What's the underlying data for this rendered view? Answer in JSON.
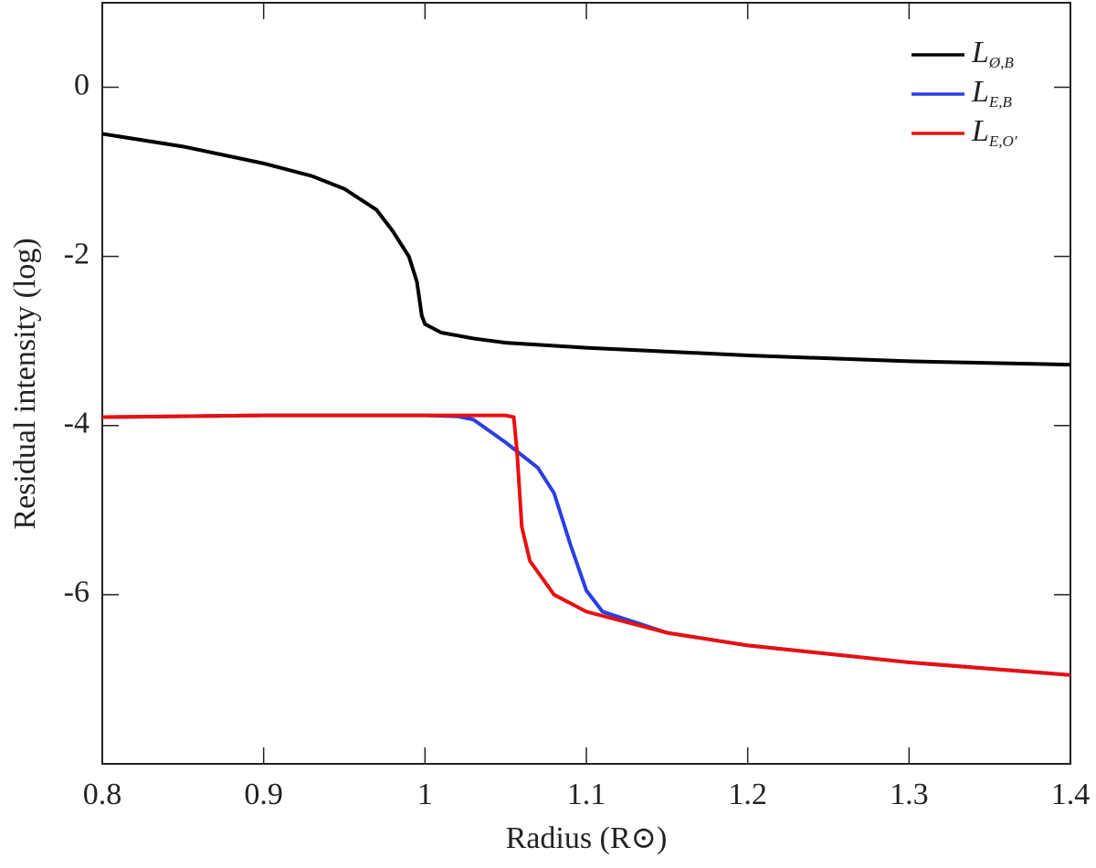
{
  "chart_data": {
    "type": "line",
    "xlabel": "Radius (R⊙)",
    "ylabel": "Residual intensity (log)",
    "xlim": [
      0.8,
      1.4
    ],
    "xticks": [
      0.8,
      0.9,
      1,
      1.1,
      1.2,
      1.3,
      1.4
    ],
    "ylim": [
      -8,
      1
    ],
    "yticks": [
      -6,
      -4,
      -2,
      0
    ],
    "legend": "upper right",
    "series": [
      {
        "name": "LØ,B",
        "color": "#000000",
        "x": [
          0.8,
          0.85,
          0.9,
          0.93,
          0.95,
          0.97,
          0.98,
          0.99,
          0.995,
          0.998,
          1.0,
          1.01,
          1.03,
          1.05,
          1.1,
          1.2,
          1.3,
          1.4
        ],
        "values": [
          -0.55,
          -0.7,
          -0.9,
          -1.05,
          -1.2,
          -1.45,
          -1.7,
          -2.0,
          -2.3,
          -2.7,
          -2.8,
          -2.9,
          -2.97,
          -3.02,
          -3.08,
          -3.17,
          -3.24,
          -3.28
        ]
      },
      {
        "name": "LE,B",
        "color": "#2b3fe0",
        "x": [
          0.8,
          0.9,
          1.0,
          1.02,
          1.03,
          1.05,
          1.07,
          1.08,
          1.09,
          1.1,
          1.11,
          1.15,
          1.2,
          1.3,
          1.4
        ],
        "values": [
          -3.9,
          -3.88,
          -3.88,
          -3.89,
          -3.93,
          -4.2,
          -4.5,
          -4.8,
          -5.4,
          -5.95,
          -6.2,
          -6.45,
          -6.6,
          -6.8,
          -6.95
        ]
      },
      {
        "name": "LE,O′",
        "color": "#e81010",
        "x": [
          0.8,
          0.9,
          1.0,
          1.05,
          1.055,
          1.057,
          1.06,
          1.065,
          1.08,
          1.1,
          1.15,
          1.2,
          1.3,
          1.4
        ],
        "values": [
          -3.9,
          -3.88,
          -3.88,
          -3.88,
          -3.9,
          -4.3,
          -5.2,
          -5.6,
          -6.0,
          -6.2,
          -6.45,
          -6.6,
          -6.8,
          -6.95
        ]
      }
    ]
  }
}
